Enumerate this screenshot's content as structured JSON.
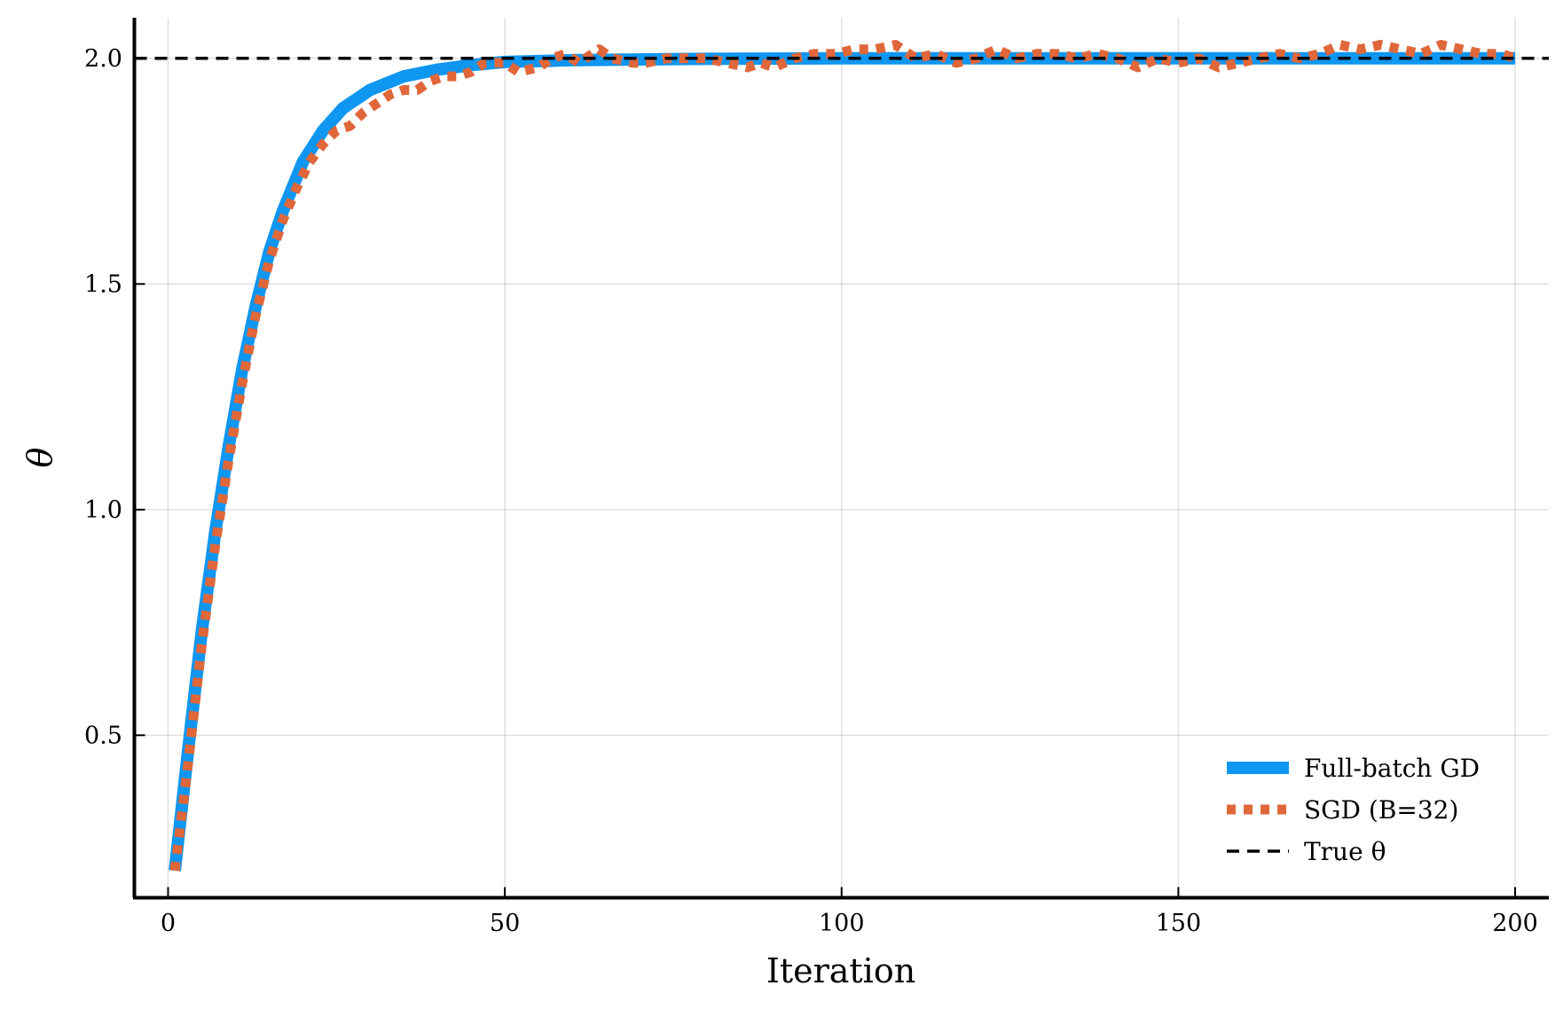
{
  "chart_data": {
    "type": "line",
    "title": "",
    "xlabel": "Iteration",
    "ylabel": "θ",
    "xlim": [
      -5,
      205
    ],
    "ylim": [
      0.14,
      2.09
    ],
    "x_ticks": [
      0,
      50,
      100,
      150,
      200
    ],
    "x_tick_labels": [
      "0",
      "50",
      "100",
      "150",
      "200"
    ],
    "y_ticks": [
      0.5,
      1.0,
      1.5,
      2.0
    ],
    "y_tick_labels": [
      "0.5",
      "1.0",
      "1.5",
      "2.0"
    ],
    "grid": true,
    "legend_position": "bottom-right",
    "series": [
      {
        "name": "Full-batch GD",
        "style": "solid",
        "color": "#0f96f0",
        "x": [
          1,
          3,
          5,
          7,
          9,
          11,
          13,
          15,
          17,
          20,
          23,
          26,
          30,
          35,
          40,
          45,
          50,
          60,
          80,
          100,
          150,
          200
        ],
        "values": [
          0.2,
          0.47,
          0.73,
          0.95,
          1.14,
          1.31,
          1.45,
          1.57,
          1.66,
          1.77,
          1.84,
          1.89,
          1.93,
          1.96,
          1.975,
          1.985,
          1.992,
          1.996,
          1.999,
          2.0,
          2.0,
          2.0
        ]
      },
      {
        "name": "SGD (B=32)",
        "style": "dotted",
        "color": "#e0673a",
        "x": [
          1,
          3,
          5,
          7,
          9,
          11,
          13,
          15,
          17,
          19,
          21,
          23,
          25,
          27,
          29,
          31,
          33,
          35,
          37,
          39,
          41,
          43,
          45,
          47,
          50,
          52,
          55,
          57,
          59,
          61,
          64,
          66,
          69,
          71,
          74,
          77,
          80,
          83,
          86,
          88,
          90,
          93,
          96,
          99,
          102,
          105,
          108,
          111,
          114,
          117,
          120,
          123,
          126,
          129,
          132,
          135,
          138,
          141,
          144,
          147,
          150,
          153,
          156,
          159,
          162,
          165,
          168,
          171,
          174,
          177,
          180,
          183,
          186,
          189,
          192,
          195,
          198,
          200
        ],
        "values": [
          0.2,
          0.44,
          0.7,
          0.92,
          1.11,
          1.28,
          1.43,
          1.55,
          1.64,
          1.71,
          1.77,
          1.81,
          1.84,
          1.85,
          1.88,
          1.9,
          1.92,
          1.93,
          1.93,
          1.95,
          1.96,
          1.96,
          1.97,
          1.99,
          1.99,
          1.97,
          1.98,
          2.0,
          2.01,
          1.99,
          2.02,
          2.0,
          1.99,
          1.99,
          2.0,
          2.0,
          2.0,
          1.99,
          1.98,
          1.99,
          1.98,
          2.0,
          2.01,
          2.01,
          2.02,
          2.02,
          2.03,
          2.0,
          2.01,
          1.99,
          2.0,
          2.02,
          2.0,
          2.01,
          2.01,
          2.0,
          2.01,
          2.0,
          1.98,
          2.0,
          1.99,
          2.0,
          1.98,
          1.99,
          2.0,
          2.01,
          2.0,
          2.01,
          2.03,
          2.02,
          2.03,
          2.02,
          2.01,
          2.03,
          2.02,
          2.01,
          2.01,
          2.0
        ]
      },
      {
        "name": "True θ",
        "style": "dashed",
        "color": "#000000",
        "x": [
          -5,
          205
        ],
        "values": [
          2.0,
          2.0
        ]
      }
    ]
  }
}
